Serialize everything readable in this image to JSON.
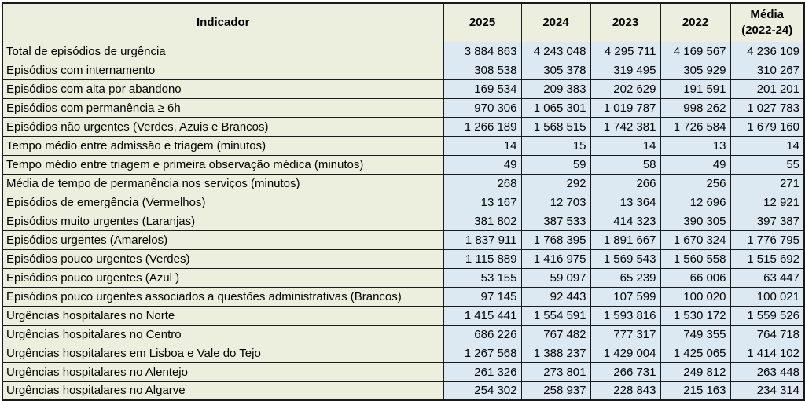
{
  "colors": {
    "label_background": "#ecefdd",
    "value_background": "#dce9f2",
    "border": "#1a1a1a",
    "text": "#000000"
  },
  "table": {
    "columns": [
      {
        "label": "Indicador"
      },
      {
        "label": "2025"
      },
      {
        "label": "2024"
      },
      {
        "label": "2023"
      },
      {
        "label": "2022"
      },
      {
        "label": "Média",
        "sublabel": "(2022-24)"
      }
    ],
    "rows": [
      {
        "label": "Total de episódios de urgência",
        "values": [
          "3 884 863",
          "4 243 048",
          "4 295 711",
          "4 169 567",
          "4 236 109"
        ]
      },
      {
        "label": "Episódios com internamento",
        "values": [
          "308 538",
          "305 378",
          "319 495",
          "305 929",
          "310 267"
        ]
      },
      {
        "label": "Episódios com alta por abandono",
        "values": [
          "169 534",
          "209 383",
          "202 629",
          "191 591",
          "201 201"
        ]
      },
      {
        "label": "Episódios com permanência ≥ 6h",
        "values": [
          "970 306",
          "1 065 301",
          "1 019 787",
          "998 262",
          "1 027 783"
        ]
      },
      {
        "label": "Episódios não urgentes (Verdes, Azuis e Brancos)",
        "values": [
          "1 266 189",
          "1 568 515",
          "1 742 381",
          "1 726 584",
          "1 679 160"
        ]
      },
      {
        "label": "Tempo médio entre admissão e triagem (minutos)",
        "values": [
          "14",
          "15",
          "14",
          "13",
          "14"
        ]
      },
      {
        "label": "Tempo médio entre triagem e primeira observação médica (minutos)",
        "values": [
          "49",
          "59",
          "58",
          "49",
          "55"
        ]
      },
      {
        "label": "Média de tempo de permanência nos serviços (minutos)",
        "values": [
          "268",
          "292",
          "266",
          "256",
          "271"
        ]
      },
      {
        "label": "Episódios de emergência (Vermelhos)",
        "values": [
          "13 167",
          "12 703",
          "13 364",
          "12 696",
          "12 921"
        ]
      },
      {
        "label": "Episódios muito urgentes (Laranjas)",
        "values": [
          "381 802",
          "387 533",
          "414 323",
          "390 305",
          "397 387"
        ]
      },
      {
        "label": "Episódios urgentes (Amarelos)",
        "values": [
          "1 837 911",
          "1 768 395",
          "1 891 667",
          "1 670 324",
          "1 776 795"
        ]
      },
      {
        "label": "Episódios pouco urgentes (Verdes)",
        "values": [
          "1 115 889",
          "1 416 975",
          "1 569 543",
          "1 560 558",
          "1 515 692"
        ]
      },
      {
        "label": "Episódios pouco urgentes (Azul )",
        "values": [
          "53 155",
          "59 097",
          "65 239",
          "66 006",
          "63 447"
        ]
      },
      {
        "label": "Episódios pouco urgentes associados a questões administrativas (Brancos)",
        "values": [
          "97 145",
          "92 443",
          "107 599",
          "100 020",
          "100 021"
        ]
      },
      {
        "label": "Urgências hospitalares no Norte",
        "values": [
          "1 415 441",
          "1 554 591",
          "1 593 816",
          "1 530 172",
          "1 559 526"
        ]
      },
      {
        "label": "Urgências hospitalares no Centro",
        "values": [
          "686 226",
          "767 482",
          "777 317",
          "749 355",
          "764 718"
        ]
      },
      {
        "label": "Urgências hospitalares em Lisboa e Vale do Tejo",
        "values": [
          "1 267 568",
          "1 388 237",
          "1 429 004",
          "1 425 065",
          "1 414 102"
        ]
      },
      {
        "label": "Urgências hospitalares no Alentejo",
        "values": [
          "261 326",
          "273 801",
          "266 731",
          "249 812",
          "263 448"
        ]
      },
      {
        "label": "Urgências hospitalares no Algarve",
        "values": [
          "254 302",
          "258 937",
          "228 843",
          "215 163",
          "234 314"
        ]
      }
    ]
  }
}
